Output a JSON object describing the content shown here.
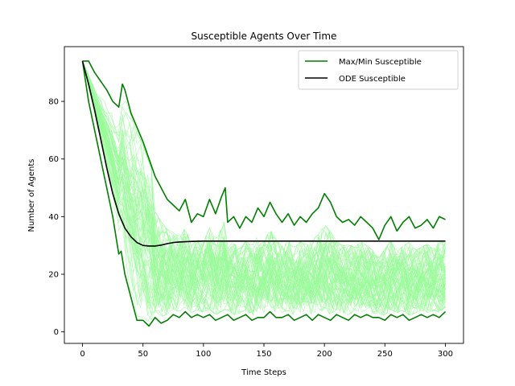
{
  "chart_data": {
    "type": "line",
    "title": "Susceptible Agents Over Time",
    "xlabel": "Time Steps",
    "ylabel": "Number of Agents",
    "xlim": [
      -15,
      315
    ],
    "ylim": [
      -4,
      99
    ],
    "xticks": [
      0,
      50,
      100,
      150,
      200,
      250,
      300
    ],
    "yticks": [
      0,
      20,
      40,
      60,
      80
    ],
    "grid": false,
    "legend_position": "top-right",
    "colors": {
      "max_min": "#007f00",
      "ode": "#000000",
      "simulations": "#98fb98"
    },
    "series": [
      {
        "name": "Max/Min Susceptible",
        "role": "max",
        "x": [
          0,
          5,
          10,
          15,
          20,
          25,
          30,
          33,
          35,
          40,
          45,
          50,
          55,
          60,
          65,
          70,
          75,
          80,
          85,
          90,
          95,
          100,
          105,
          110,
          115,
          118,
          120,
          125,
          130,
          135,
          140,
          145,
          150,
          155,
          160,
          165,
          170,
          175,
          180,
          185,
          190,
          195,
          200,
          205,
          210,
          215,
          220,
          225,
          230,
          235,
          240,
          245,
          250,
          255,
          260,
          265,
          270,
          275,
          280,
          285,
          290,
          295,
          300
        ],
        "y": [
          94,
          94,
          90,
          87,
          84,
          80,
          78,
          86,
          84,
          76,
          71,
          66,
          60,
          54,
          50,
          46,
          44,
          42,
          46,
          38,
          41,
          40,
          46,
          41,
          47,
          50,
          38,
          40,
          36,
          40,
          38,
          43,
          40,
          45,
          41,
          38,
          41,
          37,
          40,
          38,
          41,
          43,
          48,
          45,
          40,
          38,
          39,
          37,
          40,
          38,
          36,
          32,
          37,
          40,
          35,
          38,
          40,
          36,
          37,
          39,
          36,
          40,
          39
        ]
      },
      {
        "name": "",
        "role": "min",
        "x": [
          0,
          5,
          10,
          15,
          20,
          25,
          30,
          32,
          35,
          40,
          45,
          50,
          55,
          60,
          65,
          70,
          75,
          80,
          85,
          90,
          95,
          100,
          105,
          110,
          115,
          120,
          125,
          130,
          135,
          140,
          145,
          150,
          155,
          160,
          165,
          170,
          175,
          180,
          185,
          190,
          195,
          200,
          205,
          210,
          215,
          220,
          225,
          230,
          235,
          240,
          245,
          250,
          255,
          260,
          265,
          270,
          275,
          280,
          285,
          290,
          295,
          300
        ],
        "y": [
          94,
          80,
          70,
          60,
          50,
          40,
          27,
          28,
          20,
          12,
          4,
          4,
          2,
          5,
          3,
          4,
          6,
          5,
          7,
          5,
          6,
          5,
          6,
          4,
          5,
          6,
          4,
          5,
          6,
          4,
          5,
          5,
          7,
          5,
          5,
          6,
          4,
          5,
          6,
          4,
          6,
          5,
          4,
          6,
          5,
          4,
          6,
          5,
          6,
          5,
          5,
          4,
          6,
          5,
          6,
          4,
          5,
          6,
          5,
          6,
          5,
          7
        ]
      },
      {
        "name": "ODE Susceptible",
        "role": "ode",
        "x": [
          0,
          5,
          10,
          15,
          20,
          25,
          30,
          35,
          40,
          45,
          50,
          55,
          60,
          65,
          70,
          75,
          80,
          90,
          100,
          110,
          120,
          140,
          160,
          180,
          200,
          220,
          240,
          260,
          280,
          300
        ],
        "y": [
          94,
          86,
          77,
          67,
          57,
          48,
          41,
          36,
          33,
          31,
          30,
          29.8,
          29.8,
          30.1,
          30.6,
          31,
          31.2,
          31.4,
          31.5,
          31.5,
          31.5,
          31.5,
          31.5,
          31.5,
          31.5,
          31.5,
          31.5,
          31.5,
          31.5,
          31.5
        ]
      }
    ]
  }
}
